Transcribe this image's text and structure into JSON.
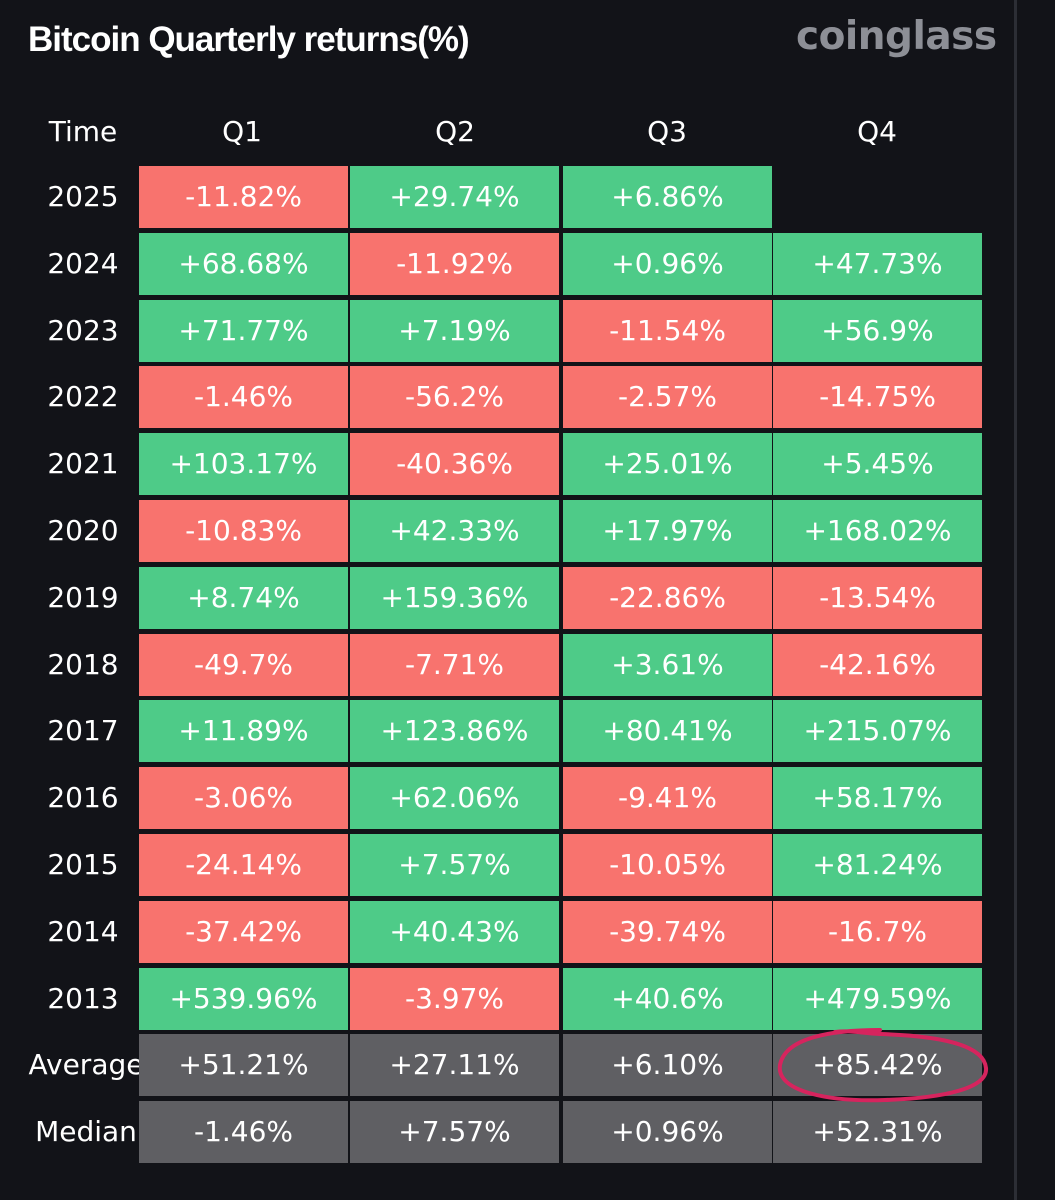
{
  "header": {
    "title": "Bitcoin Quarterly returns(%)",
    "brand": "coinglass"
  },
  "colors": {
    "background": "#121318",
    "positive": "#4ecb88",
    "negative": "#f8736e",
    "stat": "#5f5f63",
    "highlight": "#d6245e"
  },
  "chart_data": {
    "type": "table",
    "title": "Bitcoin Quarterly returns(%)",
    "columns": [
      "Time",
      "Q1",
      "Q2",
      "Q3",
      "Q4"
    ],
    "rows": [
      {
        "label": "2025",
        "values": [
          "-11.82%",
          "+29.74%",
          "+6.86%",
          ""
        ]
      },
      {
        "label": "2024",
        "values": [
          "+68.68%",
          "-11.92%",
          "+0.96%",
          "+47.73%"
        ]
      },
      {
        "label": "2023",
        "values": [
          "+71.77%",
          "+7.19%",
          "-11.54%",
          "+56.9%"
        ]
      },
      {
        "label": "2022",
        "values": [
          "-1.46%",
          "-56.2%",
          "-2.57%",
          "-14.75%"
        ]
      },
      {
        "label": "2021",
        "values": [
          "+103.17%",
          "-40.36%",
          "+25.01%",
          "+5.45%"
        ]
      },
      {
        "label": "2020",
        "values": [
          "-10.83%",
          "+42.33%",
          "+17.97%",
          "+168.02%"
        ]
      },
      {
        "label": "2019",
        "values": [
          "+8.74%",
          "+159.36%",
          "-22.86%",
          "-13.54%"
        ]
      },
      {
        "label": "2018",
        "values": [
          "-49.7%",
          "-7.71%",
          "+3.61%",
          "-42.16%"
        ]
      },
      {
        "label": "2017",
        "values": [
          "+11.89%",
          "+123.86%",
          "+80.41%",
          "+215.07%"
        ]
      },
      {
        "label": "2016",
        "values": [
          "-3.06%",
          "+62.06%",
          "-9.41%",
          "+58.17%"
        ]
      },
      {
        "label": "2015",
        "values": [
          "-24.14%",
          "+7.57%",
          "-10.05%",
          "+81.24%"
        ]
      },
      {
        "label": "2014",
        "values": [
          "-37.42%",
          "+40.43%",
          "-39.74%",
          "-16.7%"
        ]
      },
      {
        "label": "2013",
        "values": [
          "+539.96%",
          "-3.97%",
          "+40.6%",
          "+479.59%"
        ]
      }
    ],
    "summary": [
      {
        "label": "Average",
        "values": [
          "+51.21%",
          "+27.11%",
          "+6.10%",
          "+85.42%"
        ]
      },
      {
        "label": "Median",
        "values": [
          "-1.46%",
          "+7.57%",
          "+0.96%",
          "+52.31%"
        ]
      }
    ],
    "highlighted_cell": {
      "row": "Average",
      "column": "Q4"
    }
  }
}
